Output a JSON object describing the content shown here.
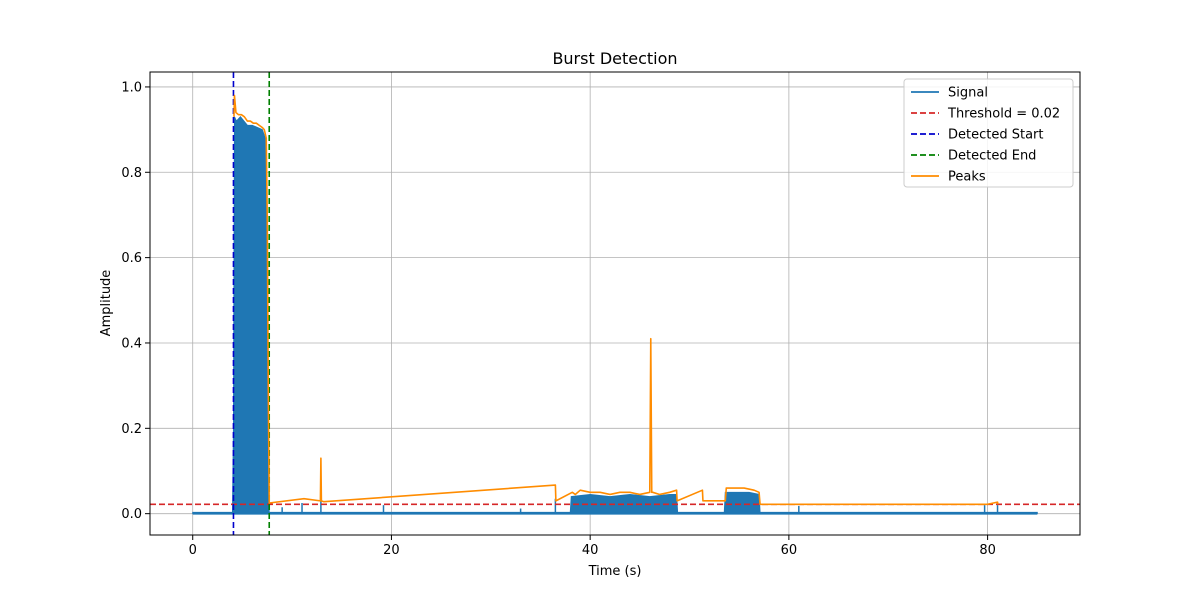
{
  "chart_data": {
    "type": "line",
    "title": "Burst Detection",
    "xlabel": "Time (s)",
    "ylabel": "Amplitude",
    "xlim": [
      -4.3,
      89.3
    ],
    "ylim": [
      -0.05,
      1.035
    ],
    "x_ticks": [
      0,
      20,
      40,
      60,
      80
    ],
    "y_ticks": [
      0.0,
      0.2,
      0.4,
      0.6,
      0.8,
      1.0
    ],
    "x_tick_labels": [
      "0",
      "20",
      "40",
      "60",
      "80"
    ],
    "y_tick_labels": [
      "0.0",
      "0.2",
      "0.4",
      "0.6",
      "0.8",
      "1.0"
    ],
    "grid": true,
    "legend_position": "top-right",
    "series": [
      {
        "name": "Signal",
        "style": "solid",
        "color": "#1f77b4",
        "kind": "filled envelope",
        "x": [
          0.0,
          4.0,
          4.1,
          4.2,
          4.4,
          4.8,
          5.5,
          6.0,
          6.5,
          7.0,
          7.3,
          7.5,
          7.55,
          7.6,
          7.7,
          38.0,
          38.1,
          40.0,
          42.0,
          44.0,
          46.0,
          48.0,
          48.7,
          48.8,
          53.5,
          53.6,
          54.5,
          56.0,
          57.0,
          57.1,
          85.0
        ],
        "y": [
          0.003,
          0.003,
          0.2,
          0.93,
          0.92,
          0.93,
          0.91,
          0.91,
          0.905,
          0.9,
          0.88,
          0.6,
          0.3,
          0.05,
          0.003,
          0.003,
          0.04,
          0.045,
          0.04,
          0.045,
          0.04,
          0.045,
          0.045,
          0.003,
          0.003,
          0.05,
          0.05,
          0.05,
          0.045,
          0.003,
          0.003
        ],
        "spikes": [
          {
            "x": 9.0,
            "y": 0.015
          },
          {
            "x": 11.0,
            "y": 0.025
          },
          {
            "x": 12.9,
            "y": 0.03
          },
          {
            "x": 19.2,
            "y": 0.02
          },
          {
            "x": 33.0,
            "y": 0.012
          },
          {
            "x": 36.5,
            "y": 0.035
          },
          {
            "x": 61.0,
            "y": 0.018
          },
          {
            "x": 79.7,
            "y": 0.02
          },
          {
            "x": 81.0,
            "y": 0.02
          }
        ]
      },
      {
        "name": "Threshold = 0.02",
        "style": "dashed",
        "color": "#d62728",
        "y": 0.022
      },
      {
        "name": "Detected Start",
        "style": "dashed",
        "color": "#0000cc",
        "x": 4.1
      },
      {
        "name": "Detected End",
        "style": "dashed",
        "color": "#008000",
        "x": 7.7
      },
      {
        "name": "Peaks",
        "style": "solid",
        "color": "#ff8c00",
        "x": [
          4.15,
          4.2,
          4.35,
          4.6,
          4.9,
          5.2,
          5.5,
          5.8,
          6.1,
          6.4,
          6.7,
          7.0,
          7.2,
          7.4,
          7.5,
          7.6,
          7.7,
          11.2,
          12.85,
          12.9,
          12.95,
          13.2,
          36.5,
          36.55,
          38.2,
          38.5,
          39.0,
          40.0,
          41.0,
          42.0,
          43.0,
          44.0,
          45.0,
          46.0,
          46.1,
          46.2,
          46.3,
          47.0,
          48.0,
          48.7,
          48.75,
          51.3,
          51.35,
          53.6,
          53.7,
          54.5,
          55.5,
          56.5,
          57.0,
          57.1,
          57.2,
          80.0,
          81.0,
          81.05
        ],
        "y": [
          0.93,
          0.98,
          0.94,
          0.935,
          0.935,
          0.93,
          0.92,
          0.92,
          0.915,
          0.915,
          0.91,
          0.905,
          0.9,
          0.88,
          0.7,
          0.3,
          0.025,
          0.035,
          0.03,
          0.13,
          0.03,
          0.028,
          0.067,
          0.03,
          0.05,
          0.045,
          0.055,
          0.05,
          0.05,
          0.045,
          0.05,
          0.05,
          0.045,
          0.05,
          0.41,
          0.05,
          0.05,
          0.045,
          0.05,
          0.055,
          0.03,
          0.055,
          0.03,
          0.03,
          0.06,
          0.06,
          0.06,
          0.055,
          0.05,
          0.022,
          0.022,
          0.022,
          0.027,
          0.022
        ]
      }
    ]
  }
}
